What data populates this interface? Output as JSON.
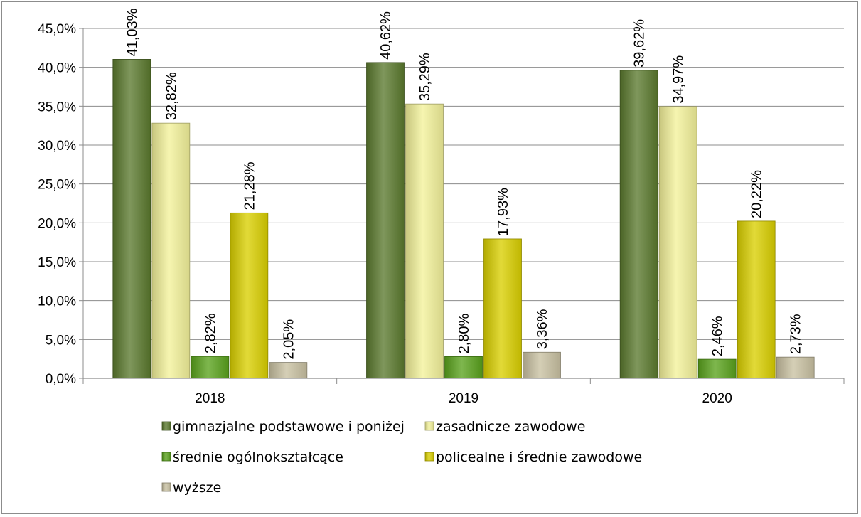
{
  "chart_data": {
    "type": "bar",
    "categories": [
      "2018",
      "2019",
      "2020"
    ],
    "series": [
      {
        "name": "gimnazjalne podstawowe i poniżej",
        "color": "#5b7a2e",
        "values": [
          41.03,
          40.62,
          39.62
        ],
        "labels": [
          "41,03%",
          "40,62%",
          "39,62%"
        ]
      },
      {
        "name": "zasadnicze zawodowe",
        "color": "#f3f29a",
        "values": [
          32.82,
          35.29,
          34.97
        ],
        "labels": [
          "32,82%",
          "35,29%",
          "34,97%"
        ]
      },
      {
        "name": "średnie ogólnokształcące",
        "color": "#5aa31c",
        "values": [
          2.82,
          2.8,
          2.46
        ],
        "labels": [
          "2,82%",
          "2,80%",
          "2,46%"
        ]
      },
      {
        "name": "policealne i średnie zawodowe",
        "color": "#dad000",
        "values": [
          21.28,
          17.93,
          20.22
        ],
        "labels": [
          "21,28%",
          "17,93%",
          "20,22%"
        ]
      },
      {
        "name": "wyższe",
        "color": "#c9c1a2",
        "values": [
          2.05,
          3.36,
          2.73
        ],
        "labels": [
          "2,05%",
          "3,36%",
          "2,73%"
        ]
      }
    ],
    "ylim": [
      0,
      45
    ],
    "yticks": [
      "0,0%",
      "5,0%",
      "10,0%",
      "15,0%",
      "20,0%",
      "25,0%",
      "30,0%",
      "35,0%",
      "40,0%",
      "45,0%"
    ],
    "grid": true,
    "legend": "bottom"
  }
}
